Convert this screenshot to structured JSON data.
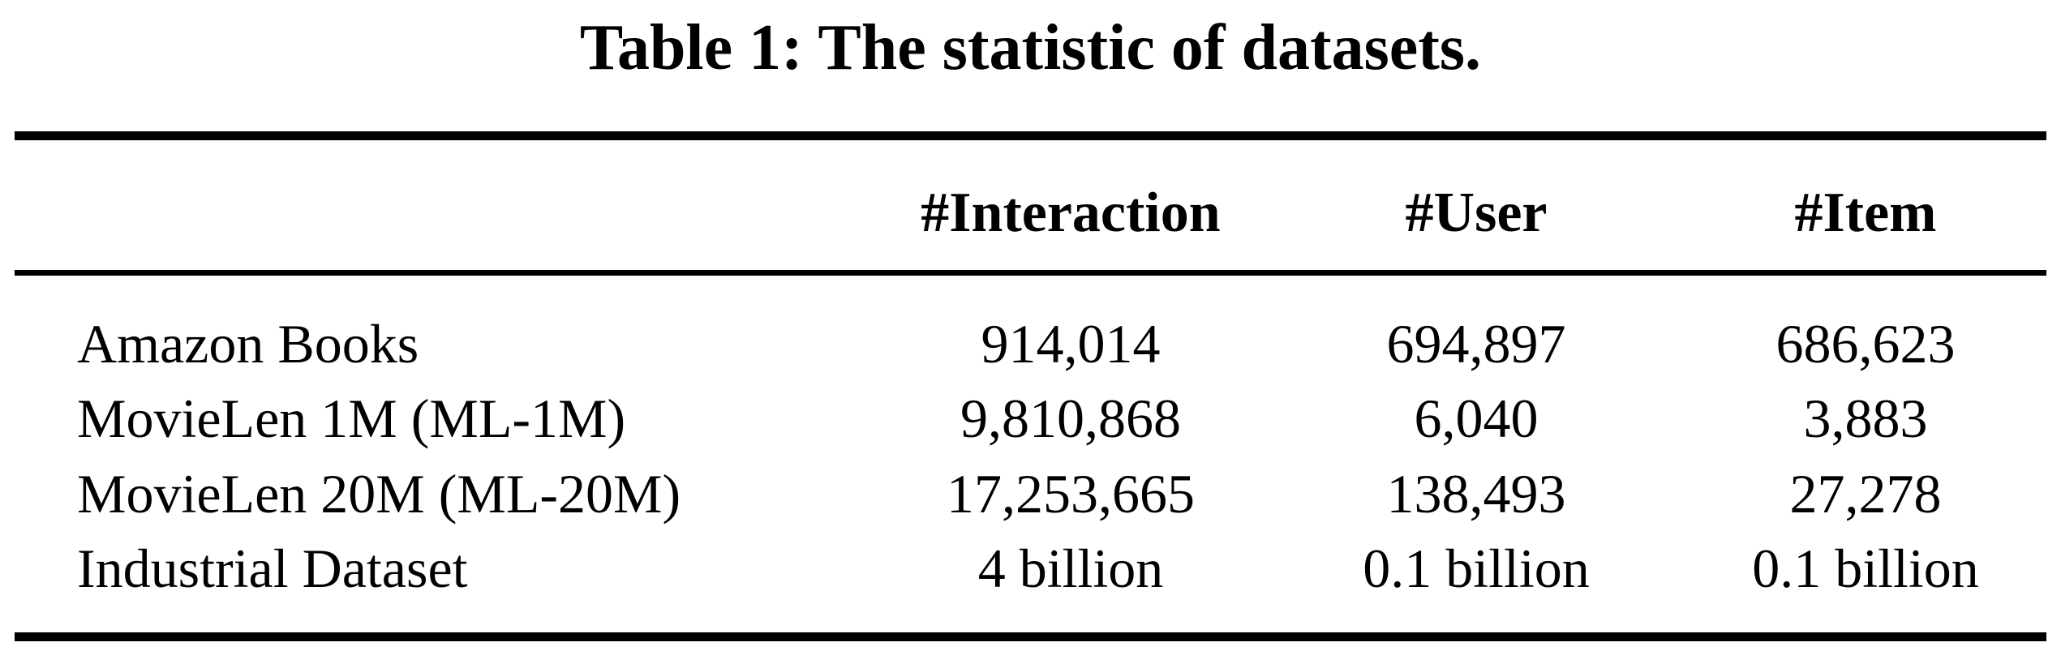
{
  "caption": "Table 1: The statistic of datasets.",
  "table": {
    "headers": [
      "",
      "#Interaction",
      "#User",
      "#Item"
    ],
    "rows": [
      {
        "dataset": "Amazon Books",
        "interaction": "914,014",
        "user": "694,897",
        "item": "686,623"
      },
      {
        "dataset": "MovieLen 1M (ML-1M)",
        "interaction": "9,810,868",
        "user": "6,040",
        "item": "3,883"
      },
      {
        "dataset": "MovieLen 20M (ML-20M)",
        "interaction": "17,253,665",
        "user": "138,493",
        "item": "27,278"
      },
      {
        "dataset": "Industrial Dataset",
        "interaction": "4 billion",
        "user": "0.1 billion",
        "item": "0.1 billion"
      }
    ]
  }
}
